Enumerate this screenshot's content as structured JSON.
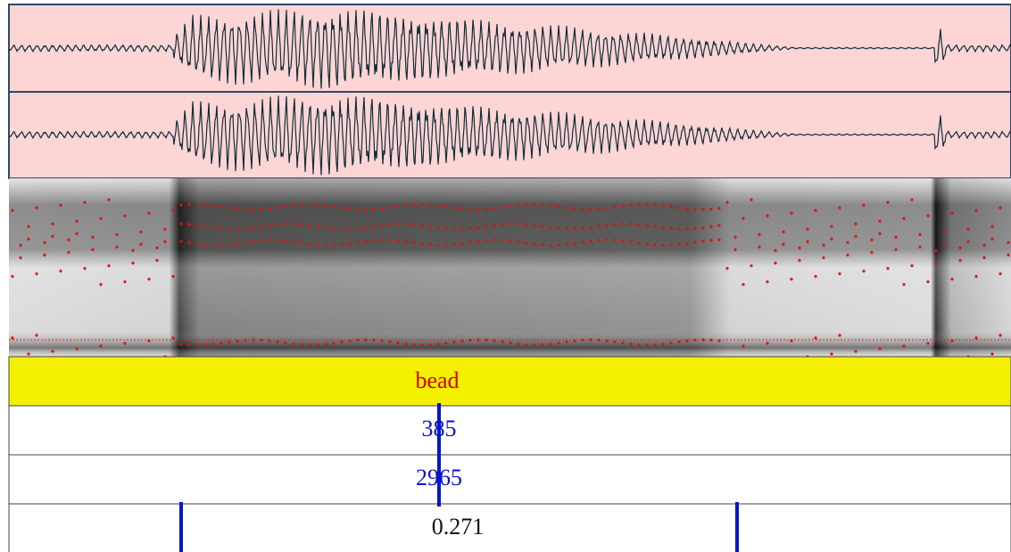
{
  "tiers": [
    {
      "label": "bead"
    },
    {
      "label": "385"
    },
    {
      "label": "2965"
    },
    {
      "label": "0.271"
    }
  ]
}
